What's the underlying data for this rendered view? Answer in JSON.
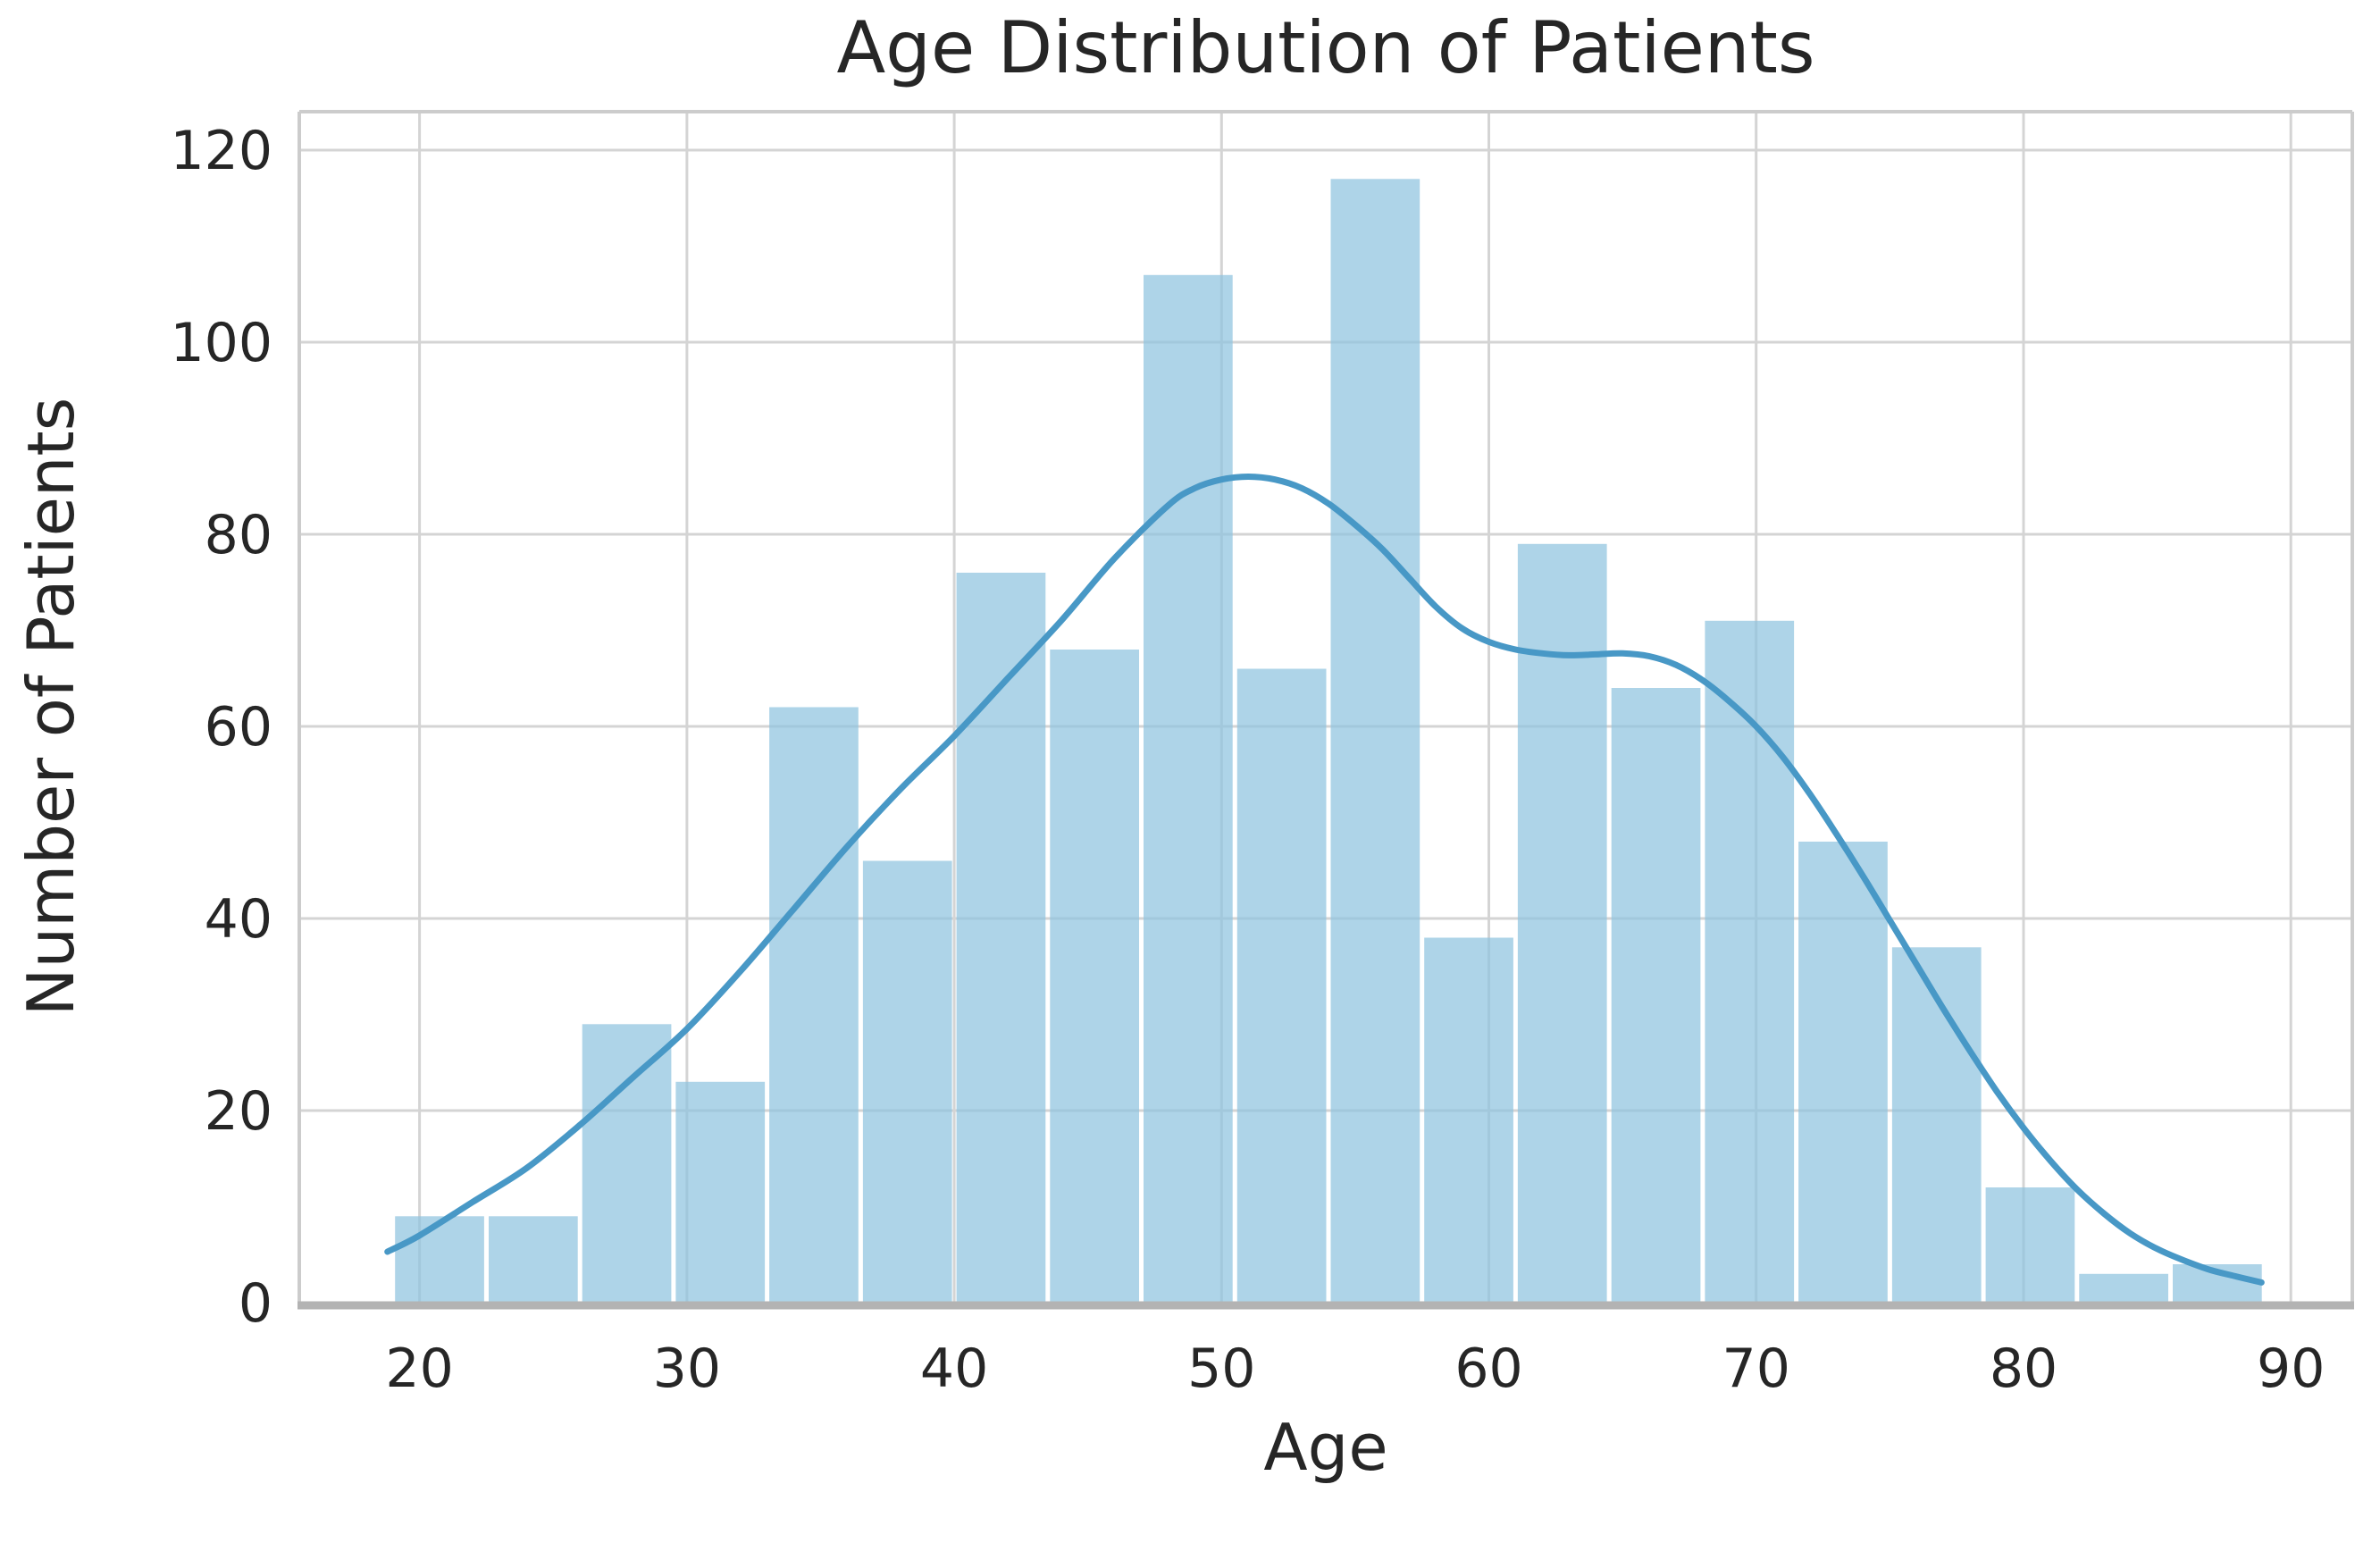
{
  "chart_data": {
    "type": "bar",
    "subtype": "histogram-with-kde-overlay",
    "title": "Age Distribution of Patients",
    "xlabel": "Age",
    "ylabel": "Number of Patients",
    "x_ticks": [
      20,
      30,
      40,
      50,
      60,
      70,
      80,
      90
    ],
    "y_ticks": [
      0,
      20,
      40,
      60,
      80,
      100,
      120
    ],
    "xlim": [
      15.5,
      92.3
    ],
    "ylim": [
      0,
      124
    ],
    "grid": "on",
    "legend": "none",
    "bin_edges": [
      19,
      22.5,
      26,
      29.5,
      33,
      36.5,
      40,
      43.5,
      47,
      50.5,
      54,
      57.5,
      61,
      64.5,
      68,
      71.5,
      75,
      78.5,
      82,
      85.5,
      89
    ],
    "counts": [
      9,
      9,
      29,
      23,
      62,
      46,
      76,
      68,
      107,
      66,
      117,
      38,
      79,
      64,
      71,
      48,
      37,
      12,
      3,
      4
    ],
    "kde_series_name": "kde-density-curve",
    "kde_points": [
      [
        18.8,
        5.3
      ],
      [
        20,
        7
      ],
      [
        22,
        10.5
      ],
      [
        24,
        14
      ],
      [
        26,
        18.5
      ],
      [
        28,
        23.5
      ],
      [
        30,
        28.5
      ],
      [
        32,
        34.5
      ],
      [
        34,
        41
      ],
      [
        36,
        47.5
      ],
      [
        38,
        53.5
      ],
      [
        40,
        59
      ],
      [
        42,
        65
      ],
      [
        44,
        71
      ],
      [
        46,
        77.5
      ],
      [
        48,
        83
      ],
      [
        49,
        84.8
      ],
      [
        50,
        85.7
      ],
      [
        51,
        86
      ],
      [
        52,
        85.7
      ],
      [
        53,
        84.8
      ],
      [
        54,
        83.2
      ],
      [
        55,
        81
      ],
      [
        56,
        78.5
      ],
      [
        57,
        75.5
      ],
      [
        58,
        72.5
      ],
      [
        59,
        70.2
      ],
      [
        60,
        68.8
      ],
      [
        61,
        68
      ],
      [
        62,
        67.6
      ],
      [
        63,
        67.4
      ],
      [
        64,
        67.5
      ],
      [
        65,
        67.6
      ],
      [
        66,
        67.3
      ],
      [
        67,
        66.4
      ],
      [
        68,
        64.8
      ],
      [
        69,
        62.6
      ],
      [
        70,
        60
      ],
      [
        71,
        56.8
      ],
      [
        72,
        53
      ],
      [
        73,
        48.8
      ],
      [
        74,
        44.4
      ],
      [
        75,
        39.8
      ],
      [
        76,
        35.2
      ],
      [
        77,
        30.6
      ],
      [
        78,
        26.2
      ],
      [
        79,
        22
      ],
      [
        80,
        18.2
      ],
      [
        81,
        14.8
      ],
      [
        82,
        11.8
      ],
      [
        83,
        9.3
      ],
      [
        84,
        7.2
      ],
      [
        85,
        5.6
      ],
      [
        86,
        4.4
      ],
      [
        87,
        3.4
      ],
      [
        88,
        2.7
      ],
      [
        88.9,
        2.1
      ]
    ],
    "colors": {
      "background": "#FFFFFF",
      "bar_fill_perceived": "#AED3E8",
      "bar_fill_raw": "#8FC3DF",
      "bar_opacity": 0.72,
      "kde_line": "#4898C6",
      "grid": "#D4D4D4",
      "spine": "#CCCCCC",
      "bottom_spine": "#B3B3B3",
      "text": "#262626"
    }
  }
}
